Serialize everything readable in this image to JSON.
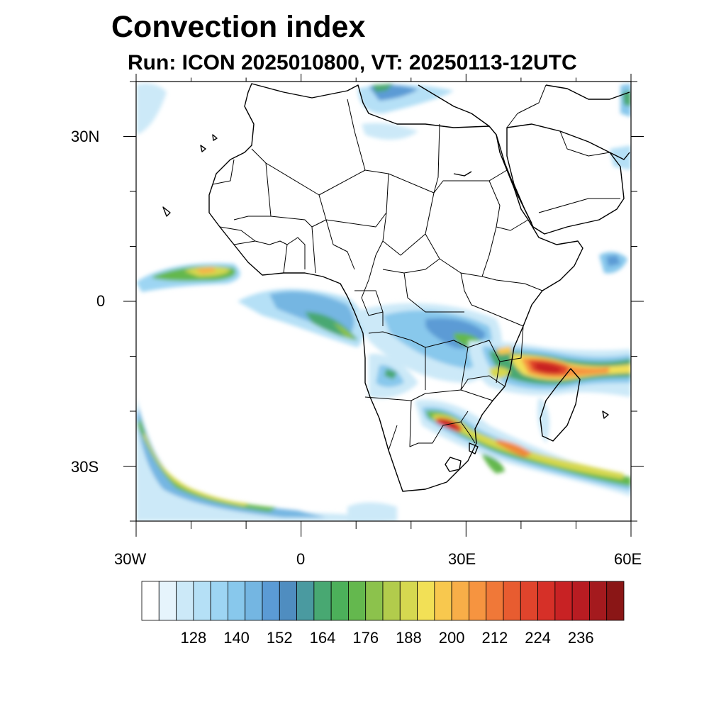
{
  "title": "Convection index",
  "subtitle": "Run: ICON 2025010800,  VT: 20250113-12UTC",
  "map": {
    "extent": {
      "lon": [
        -30,
        60
      ],
      "lat": [
        -40,
        40
      ]
    },
    "lat_labels": [
      {
        "lat": 30,
        "text": "30N"
      },
      {
        "lat": 0,
        "text": "0"
      },
      {
        "lat": -30,
        "text": "30S"
      }
    ],
    "lon_labels": [
      {
        "lon": -30,
        "text": "30W"
      },
      {
        "lon": 0,
        "text": "0"
      },
      {
        "lon": 30,
        "text": "30E"
      },
      {
        "lon": 60,
        "text": "60E"
      }
    ],
    "lat_minor_ticks": [
      40,
      30,
      20,
      10,
      0,
      -10,
      -20,
      -30,
      -40
    ],
    "lon_minor_ticks": [
      -30,
      -20,
      -10,
      0,
      10,
      20,
      30,
      40,
      50,
      60
    ]
  },
  "colorbar": {
    "labels": [
      "128",
      "140",
      "152",
      "164",
      "176",
      "188",
      "200",
      "212",
      "224",
      "236"
    ],
    "colors": [
      "#ffffff",
      "#e6f4fc",
      "#cce9f8",
      "#b5e0f6",
      "#9dd5f3",
      "#88c8ec",
      "#74b6e2",
      "#5b9bd5",
      "#4f8dc0",
      "#4a9aa0",
      "#48a872",
      "#4cb05a",
      "#64b84e",
      "#8cc24c",
      "#b2cc4c",
      "#d6d850",
      "#f2e056",
      "#f8c84e",
      "#f8ae48",
      "#f69440",
      "#f07838",
      "#e85c30",
      "#e0442c",
      "#d63028",
      "#c82224",
      "#b81c22",
      "#a41a1e",
      "#8a1616"
    ]
  },
  "features": [
    "cyclone-band-madagascar-channel",
    "convection-southern-africa",
    "convection-south-atlantic-band",
    "convection-gulf-of-guinea",
    "convection-central-africa"
  ]
}
